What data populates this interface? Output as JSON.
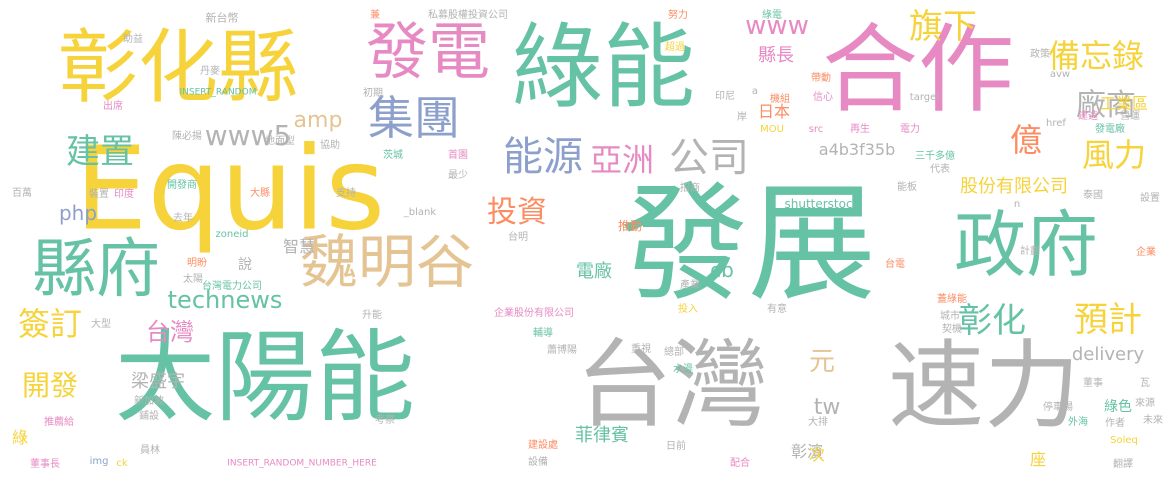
{
  "palette": {
    "yellow": "#f6d33a",
    "green": "#66c2a5",
    "pink": "#e78ac3",
    "gray": "#b3b3b3",
    "orange": "#fc8d62",
    "blue": "#8da0cb",
    "tan": "#e5c494",
    "lime": "#a6d854"
  },
  "words": [
    {
      "text": "發展",
      "color": "#66c2a5"
    },
    {
      "text": "合作",
      "color": "#e78ac3"
    },
    {
      "text": "Equis",
      "color": "#f6d33a"
    },
    {
      "text": "太陽能",
      "color": "#66c2a5"
    },
    {
      "text": "台灣",
      "color": "#b3b3b3"
    },
    {
      "text": "速力",
      "color": "#b3b3b3"
    },
    {
      "text": "彰化縣",
      "color": "#f6d33a"
    },
    {
      "text": "綠能",
      "color": "#66c2a5"
    },
    {
      "text": "政府",
      "color": "#66c2a5"
    },
    {
      "text": "發電",
      "color": "#e78ac3"
    },
    {
      "text": "縣府",
      "color": "#66c2a5"
    },
    {
      "text": "魏明谷",
      "color": "#e5c494"
    },
    {
      "text": "集團",
      "color": "#8da0cb"
    },
    {
      "text": "能源",
      "color": "#8da0cb"
    },
    {
      "text": "公司",
      "color": "#b3b3b3"
    },
    {
      "text": "亞洲",
      "color": "#e78ac3"
    },
    {
      "text": "旗下",
      "color": "#f6d33a"
    },
    {
      "text": "備忘錄",
      "color": "#f6d33a"
    },
    {
      "text": "廠商",
      "color": "#b3b3b3"
    },
    {
      "text": "風力",
      "color": "#f6d33a"
    },
    {
      "text": "億",
      "color": "#fc8d62"
    },
    {
      "text": "預計",
      "color": "#f6d33a"
    },
    {
      "text": "彰化",
      "color": "#66c2a5"
    },
    {
      "text": "建置",
      "color": "#66c2a5"
    },
    {
      "text": "簽訂",
      "color": "#f6d33a"
    },
    {
      "text": "開發",
      "color": "#f6d33a"
    },
    {
      "text": "投資",
      "color": "#fc8d62"
    },
    {
      "text": "www",
      "color": "#e78ac3"
    },
    {
      "text": "www5",
      "color": "#b3b3b3"
    },
    {
      "text": "technews",
      "color": "#66c2a5"
    },
    {
      "text": "台灣",
      "color": "#e78ac3"
    },
    {
      "text": "amp",
      "color": "#e5c494"
    },
    {
      "text": "php",
      "color": "#8da0cb"
    },
    {
      "text": "股份有限公司",
      "color": "#f6d33a"
    },
    {
      "text": "工業區",
      "color": "#f6d33a"
    },
    {
      "text": "縣長",
      "color": "#e78ac3"
    },
    {
      "text": "日本",
      "color": "#fc8d62"
    },
    {
      "text": "a4b3f35b",
      "color": "#b3b3b3"
    },
    {
      "text": "電廠",
      "color": "#66c2a5"
    },
    {
      "text": "cb",
      "color": "#66c2a5"
    },
    {
      "text": "元",
      "color": "#e5c494"
    },
    {
      "text": "tw",
      "color": "#b3b3b3"
    },
    {
      "text": "delivery",
      "color": "#b3b3b3"
    },
    {
      "text": "梁盛宇",
      "color": "#b3b3b3"
    },
    {
      "text": "菲律賓",
      "color": "#66c2a5"
    },
    {
      "text": "彰濱",
      "color": "#b3b3b3"
    },
    {
      "text": "智慧",
      "color": "#b3b3b3"
    },
    {
      "text": "說",
      "color": "#b3b3b3"
    },
    {
      "text": "綠色",
      "color": "#66c2a5"
    },
    {
      "text": "次",
      "color": "#f6d33a"
    },
    {
      "text": "座",
      "color": "#f6d33a"
    },
    {
      "text": "綠",
      "color": "#f6d33a"
    },
    {
      "text": "shutterstock",
      "color": "#66c2a5"
    },
    {
      "text": "MOU",
      "color": "#f6d33a"
    },
    {
      "text": "src",
      "color": "#e78ac3"
    },
    {
      "text": "再生",
      "color": "#e78ac3"
    },
    {
      "text": "新台幣",
      "color": "#b3b3b3"
    },
    {
      "text": "私募股權投資公司",
      "color": "#b3b3b3"
    },
    {
      "text": "INSERT_RANDOM",
      "color": "#66c2a5"
    },
    {
      "text": "INSERT_RANDOM_NUMBER_HERE",
      "color": "#e78ac3"
    },
    {
      "text": "_blank",
      "color": "#b3b3b3"
    },
    {
      "text": "zoneid",
      "color": "#66c2a5"
    },
    {
      "text": "台灣電力公司",
      "color": "#66c2a5"
    },
    {
      "text": "企業股份有限公司",
      "color": "#e78ac3"
    },
    {
      "text": "href",
      "color": "#b3b3b3"
    },
    {
      "text": "target",
      "color": "#b3b3b3"
    },
    {
      "text": "Soleq",
      "color": "#f6d33a"
    },
    {
      "text": "img",
      "color": "#8da0cb"
    },
    {
      "text": "ck",
      "color": "#f6d33a"
    },
    {
      "text": "avw",
      "color": "#b3b3b3"
    },
    {
      "text": "a",
      "color": "#b3b3b3"
    },
    {
      "text": "n",
      "color": "#b3b3b3"
    },
    {
      "text": "助益",
      "color": "#b3b3b3"
    },
    {
      "text": "丹麥",
      "color": "#b3b3b3"
    },
    {
      "text": "出席",
      "color": "#e78ac3"
    },
    {
      "text": "百萬",
      "color": "#b3b3b3"
    },
    {
      "text": "裝置",
      "color": "#b3b3b3"
    },
    {
      "text": "印度",
      "color": "#e78ac3"
    },
    {
      "text": "開發商",
      "color": "#66c2a5"
    },
    {
      "text": "去年",
      "color": "#b3b3b3"
    },
    {
      "text": "大縣",
      "color": "#fc8d62"
    },
    {
      "text": "支持",
      "color": "#b3b3b3"
    },
    {
      "text": "地面型",
      "color": "#b3b3b3"
    },
    {
      "text": "協助",
      "color": "#b3b3b3"
    },
    {
      "text": "陳必揚",
      "color": "#b3b3b3"
    },
    {
      "text": "初期",
      "color": "#b3b3b3"
    },
    {
      "text": "茨城",
      "color": "#66c2a5"
    },
    {
      "text": "首園",
      "color": "#e78ac3"
    },
    {
      "text": "最少",
      "color": "#b3b3b3"
    },
    {
      "text": "招商",
      "color": "#b3b3b3"
    },
    {
      "text": "推動",
      "color": "#fc8d62"
    },
    {
      "text": "台明",
      "color": "#b3b3b3"
    },
    {
      "text": "明盼",
      "color": "#fc8d62"
    },
    {
      "text": "太陽",
      "color": "#b3b3b3"
    },
    {
      "text": "大型",
      "color": "#b3b3b3"
    },
    {
      "text": "新加坡",
      "color": "#b3b3b3"
    },
    {
      "text": "鋪設",
      "color": "#b3b3b3"
    },
    {
      "text": "推薦給",
      "color": "#e78ac3"
    },
    {
      "text": "董事長",
      "color": "#e78ac3"
    },
    {
      "text": "員林",
      "color": "#b3b3b3"
    },
    {
      "text": "考察",
      "color": "#b3b3b3"
    },
    {
      "text": "建設處",
      "color": "#fc8d62"
    },
    {
      "text": "設備",
      "color": "#b3b3b3"
    },
    {
      "text": "日前",
      "color": "#b3b3b3"
    },
    {
      "text": "配合",
      "color": "#e78ac3"
    },
    {
      "text": "蕭博陽",
      "color": "#b3b3b3"
    },
    {
      "text": "重視",
      "color": "#b3b3b3"
    },
    {
      "text": "總部",
      "color": "#b3b3b3"
    },
    {
      "text": "水邊",
      "color": "#66c2a5"
    },
    {
      "text": "輔導",
      "color": "#66c2a5"
    },
    {
      "text": "升能",
      "color": "#b3b3b3"
    },
    {
      "text": "產業",
      "color": "#b3b3b3"
    },
    {
      "text": "投入",
      "color": "#f6d33a"
    },
    {
      "text": "有意",
      "color": "#b3b3b3"
    },
    {
      "text": "大排",
      "color": "#b3b3b3"
    },
    {
      "text": "城市",
      "color": "#b3b3b3"
    },
    {
      "text": "蓋綠能",
      "color": "#fc8d62"
    },
    {
      "text": "契機",
      "color": "#b3b3b3"
    },
    {
      "text": "停車場",
      "color": "#b3b3b3"
    },
    {
      "text": "外海",
      "color": "#66c2a5"
    },
    {
      "text": "作者",
      "color": "#b3b3b3"
    },
    {
      "text": "翻譯",
      "color": "#b3b3b3"
    },
    {
      "text": "董事",
      "color": "#b3b3b3"
    },
    {
      "text": "瓦",
      "color": "#b3b3b3"
    },
    {
      "text": "來源",
      "color": "#b3b3b3"
    },
    {
      "text": "未來",
      "color": "#b3b3b3"
    },
    {
      "text": "企業",
      "color": "#fc8d62"
    },
    {
      "text": "計劃",
      "color": "#b3b3b3"
    },
    {
      "text": "台電",
      "color": "#fc8d62"
    },
    {
      "text": "設置",
      "color": "#b3b3b3"
    },
    {
      "text": "泰國",
      "color": "#b3b3b3"
    },
    {
      "text": "能板",
      "color": "#b3b3b3"
    },
    {
      "text": "三千多億",
      "color": "#66c2a5"
    },
    {
      "text": "代表",
      "color": "#b3b3b3"
    },
    {
      "text": "電力",
      "color": "#e78ac3"
    },
    {
      "text": "發電廠",
      "color": "#66c2a5"
    },
    {
      "text": "建造",
      "color": "#e78ac3"
    },
    {
      "text": "營運",
      "color": "#b3b3b3"
    },
    {
      "text": "信心",
      "color": "#e78ac3"
    },
    {
      "text": "機組",
      "color": "#fc8d62"
    },
    {
      "text": "帶動",
      "color": "#fc8d62"
    },
    {
      "text": "印尼",
      "color": "#b3b3b3"
    },
    {
      "text": "岸",
      "color": "#b3b3b3"
    },
    {
      "text": "努力",
      "color": "#fc8d62"
    },
    {
      "text": "綠電",
      "color": "#66c2a5"
    },
    {
      "text": "政策",
      "color": "#b3b3b3"
    },
    {
      "text": "超過",
      "color": "#f6d33a"
    },
    {
      "text": "兼",
      "color": "#fc8d62"
    }
  ]
}
